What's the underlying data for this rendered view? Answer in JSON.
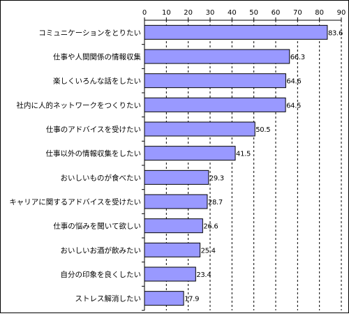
{
  "chart_data": {
    "type": "bar",
    "orientation": "horizontal",
    "title": "",
    "xlabel": "",
    "ylabel": "",
    "xlim": [
      0,
      90
    ],
    "ticks": [
      0,
      10,
      20,
      30,
      40,
      50,
      60,
      70,
      80,
      90
    ],
    "tick_labels": [
      "0",
      "10",
      "20",
      "30",
      "40",
      "50",
      "60",
      "70",
      "80",
      "90"
    ],
    "grid": "vertical dashed",
    "bar_color": "#9999ff",
    "categories": [
      "コミュニケーションをとりたい",
      "仕事や人間関係の情報収集",
      "楽しくいろんな話をしたい",
      "社内に人的ネットワークをつくりたい",
      "仕事のアドバイスを受けたい",
      "仕事以外の情報収集をしたい",
      "おいしいものが食べたい",
      "キャリアに関するアドバイスを受けたい",
      "仕事の悩みを聞いて欲しい",
      "おいしいお酒が飲みたい",
      "自分の印象を良くしたい",
      "ストレス解消したい"
    ],
    "values": [
      83.6,
      66.3,
      64.6,
      64.5,
      50.5,
      41.5,
      29.3,
      28.7,
      26.6,
      25.4,
      23.4,
      17.9
    ],
    "value_labels": [
      "83.6",
      "66.3",
      "64.6",
      "64.5",
      "50.5",
      "41.5",
      "29.3",
      "28.7",
      "26.6",
      "25.4",
      "23.4",
      "17.9"
    ]
  }
}
